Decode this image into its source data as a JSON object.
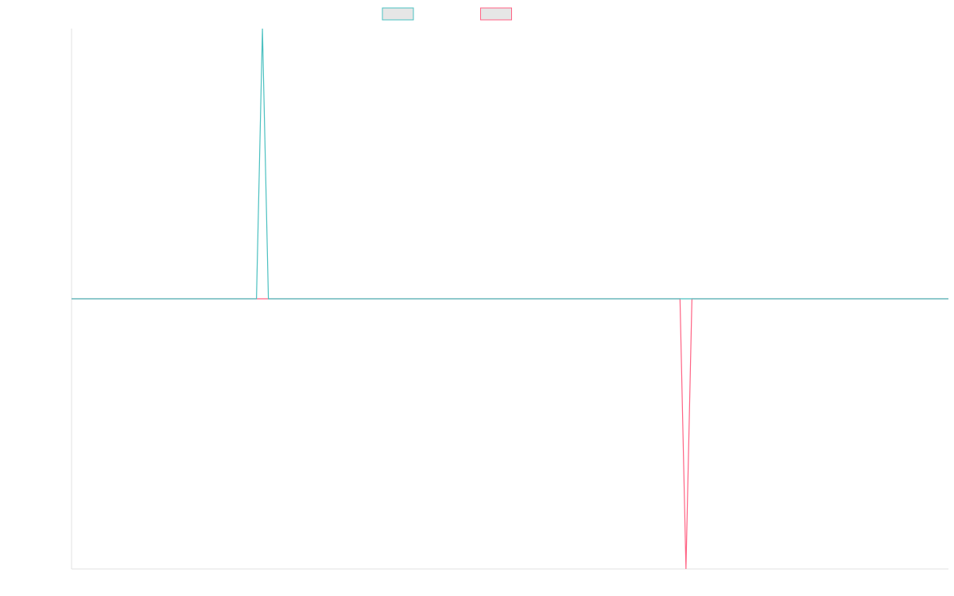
{
  "chart_data": {
    "type": "line",
    "categories": [
      null,
      null,
      null,
      null,
      null,
      null,
      null,
      null,
      null,
      null,
      null,
      null,
      null,
      null,
      null,
      null,
      null,
      null,
      null,
      null,
      null,
      null,
      null,
      null,
      null,
      null,
      null,
      null,
      null,
      null,
      null,
      null,
      null,
      null,
      null,
      null,
      null,
      null,
      null,
      null,
      null,
      null,
      null,
      null,
      null,
      null,
      null,
      null,
      null,
      null,
      null,
      null,
      null,
      null,
      null,
      null,
      null,
      null,
      null,
      null,
      null,
      null,
      null,
      null,
      null,
      null,
      null,
      null,
      null,
      null,
      null,
      null,
      null,
      null,
      null,
      null,
      null,
      null,
      null,
      null,
      null,
      null,
      null,
      null,
      null,
      null,
      null,
      null,
      null,
      null,
      null,
      null,
      null,
      null,
      null,
      null,
      null,
      null,
      null,
      null,
      null,
      null,
      null,
      null,
      null,
      null,
      null,
      null,
      null,
      null,
      null,
      null,
      null,
      null,
      null,
      null,
      null,
      null,
      null,
      null,
      null,
      null,
      null,
      null,
      null,
      null,
      null,
      null,
      null,
      null,
      null,
      null,
      null,
      null,
      null,
      null,
      null,
      null,
      null,
      null,
      null,
      null,
      null,
      null,
      null,
      null,
      null,
      null
    ],
    "series": [
      {
        "color": "#4bc0c0",
        "values": [
          0,
          0,
          0,
          0,
          0,
          0,
          0,
          0,
          0,
          0,
          0,
          0,
          0,
          0,
          0,
          0,
          0,
          0,
          0,
          0,
          0,
          0,
          0,
          0,
          0,
          0,
          0,
          0,
          0,
          0,
          0,
          0,
          1,
          0,
          0,
          0,
          0,
          0,
          0,
          0,
          0,
          0,
          0,
          0,
          0,
          0,
          0,
          0,
          0,
          0,
          0,
          0,
          0,
          0,
          0,
          0,
          0,
          0,
          0,
          0,
          0,
          0,
          0,
          0,
          0,
          0,
          0,
          0,
          0,
          0,
          0,
          0,
          0,
          0,
          0,
          0,
          0,
          0,
          0,
          0,
          0,
          0,
          0,
          0,
          0,
          0,
          0,
          0,
          0,
          0,
          0,
          0,
          0,
          0,
          0,
          0,
          0,
          0,
          0,
          0,
          0,
          0,
          0,
          0,
          0,
          0,
          0,
          0,
          0,
          0,
          0,
          0,
          0,
          0,
          0,
          0,
          0,
          0,
          0,
          0,
          0,
          0,
          0,
          0,
          0,
          0,
          0,
          0,
          0,
          0,
          0,
          0,
          0,
          0,
          0,
          0,
          0,
          0,
          0,
          0,
          0,
          0,
          0,
          0,
          0,
          0,
          0,
          0
        ]
      },
      {
        "color": "#ff6384",
        "values": [
          0,
          0,
          0,
          0,
          0,
          0,
          0,
          0,
          0,
          0,
          0,
          0,
          0,
          0,
          0,
          0,
          0,
          0,
          0,
          0,
          0,
          0,
          0,
          0,
          0,
          0,
          0,
          0,
          0,
          0,
          0,
          0,
          0,
          0,
          0,
          0,
          0,
          0,
          0,
          0,
          0,
          0,
          0,
          0,
          0,
          0,
          0,
          0,
          0,
          0,
          0,
          0,
          0,
          0,
          0,
          0,
          0,
          0,
          0,
          0,
          0,
          0,
          0,
          0,
          0,
          0,
          0,
          0,
          0,
          0,
          0,
          0,
          0,
          0,
          0,
          0,
          0,
          0,
          0,
          0,
          0,
          0,
          0,
          0,
          0,
          0,
          0,
          0,
          0,
          0,
          0,
          0,
          0,
          0,
          0,
          0,
          0,
          0,
          0,
          0,
          0,
          0,
          0,
          -1,
          0,
          0,
          0,
          0,
          0,
          0,
          0,
          0,
          0,
          0,
          0,
          0,
          0,
          0,
          0,
          0,
          0,
          0,
          0,
          0,
          0,
          0,
          0,
          0,
          0,
          0,
          0,
          0,
          0,
          0,
          0,
          0,
          0,
          0,
          0,
          0,
          0,
          0,
          0,
          0,
          0,
          0,
          0,
          0
        ]
      }
    ],
    "ylim": [
      -1,
      1
    ]
  }
}
